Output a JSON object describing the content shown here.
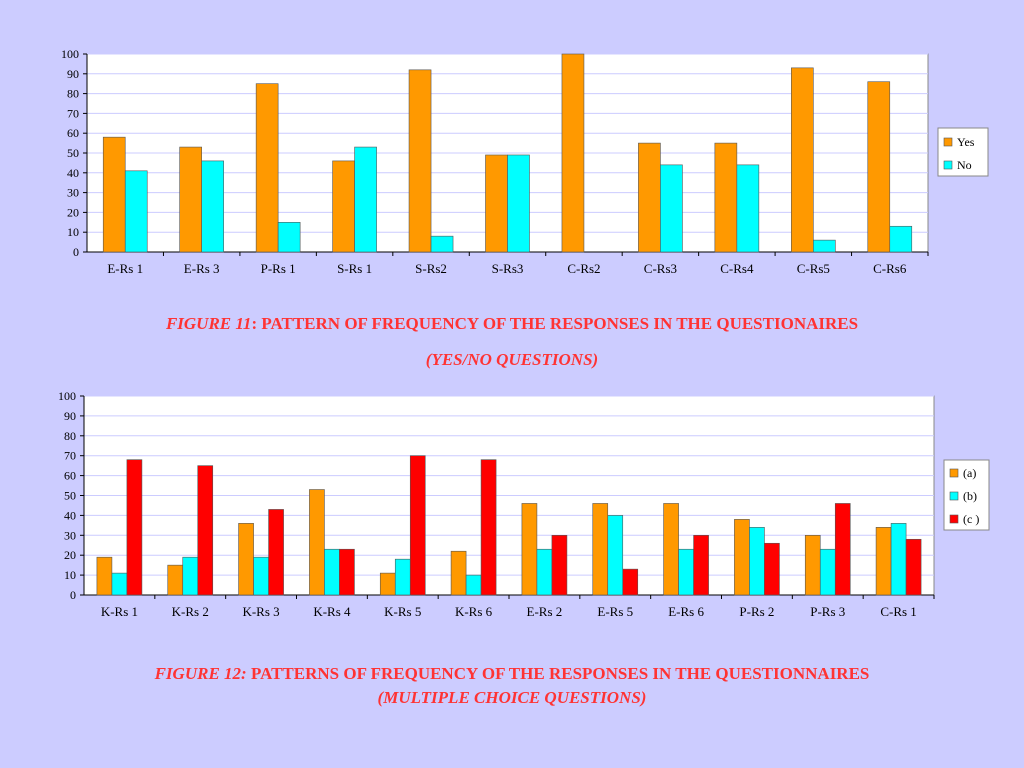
{
  "colors": {
    "yes": "#FF9900",
    "no": "#00FFFF",
    "a": "#FF9900",
    "b": "#00FFFF",
    "c": "#FF0000",
    "plot_bg": "#FFFFFF",
    "grid": "#CCCCFF",
    "caption": "#FF3333"
  },
  "captions": {
    "fig11_label": "FIGURE 11",
    "fig11_sep": ": ",
    "fig11_text": "PATTERN OF FREQUENCY OF THE RESPONSES IN THE QUESTIONAIRES",
    "fig11_sub": "(YES/NO QUESTIONS)",
    "fig12_label": "FIGURE 12:",
    "fig12_text": " PATTERNS OF FREQUENCY OF THE RESPONSES IN THE QUESTIONNAIRES",
    "fig12_sub": "(MULTIPLE CHOICE QUESTIONS)"
  },
  "chart_data": [
    {
      "type": "bar",
      "categories": [
        "E-Rs 1",
        "E-Rs 3",
        "P-Rs 1",
        "S-Rs 1",
        "S-Rs2",
        "S-Rs3",
        "C-Rs2",
        "C-Rs3",
        "C-Rs4",
        "C-Rs5",
        "C-Rs6"
      ],
      "series": [
        {
          "name": "Yes",
          "values": [
            58,
            53,
            85,
            46,
            92,
            49,
            100,
            55,
            55,
            93,
            86
          ]
        },
        {
          "name": "No",
          "values": [
            41,
            46,
            15,
            53,
            8,
            49,
            0,
            44,
            44,
            6,
            13
          ]
        }
      ],
      "yticks": [
        0,
        10,
        20,
        30,
        40,
        50,
        60,
        70,
        80,
        90,
        100
      ],
      "ylim": [
        0,
        100
      ],
      "grid": true,
      "legend": "right"
    },
    {
      "type": "bar",
      "categories": [
        "K-Rs 1",
        "K-Rs 2",
        "K-Rs 3",
        "K-Rs 4",
        "K-Rs 5",
        "K-Rs 6",
        "E-Rs 2",
        "E-Rs 5",
        "E-Rs 6",
        "P-Rs 2",
        "P-Rs 3",
        "C-Rs 1"
      ],
      "series": [
        {
          "name": "(a)",
          "values": [
            19,
            15,
            36,
            53,
            11,
            22,
            46,
            46,
            46,
            38,
            30,
            34
          ]
        },
        {
          "name": "(b)",
          "values": [
            11,
            19,
            19,
            23,
            18,
            10,
            23,
            40,
            23,
            34,
            23,
            36
          ]
        },
        {
          "name": "(c )",
          "values": [
            68,
            65,
            43,
            23,
            70,
            68,
            30,
            13,
            30,
            26,
            46,
            28
          ]
        }
      ],
      "yticks": [
        0,
        10,
        20,
        30,
        40,
        50,
        60,
        70,
        80,
        90,
        100
      ],
      "ylim": [
        0,
        100
      ],
      "grid": true,
      "legend": "right"
    }
  ]
}
